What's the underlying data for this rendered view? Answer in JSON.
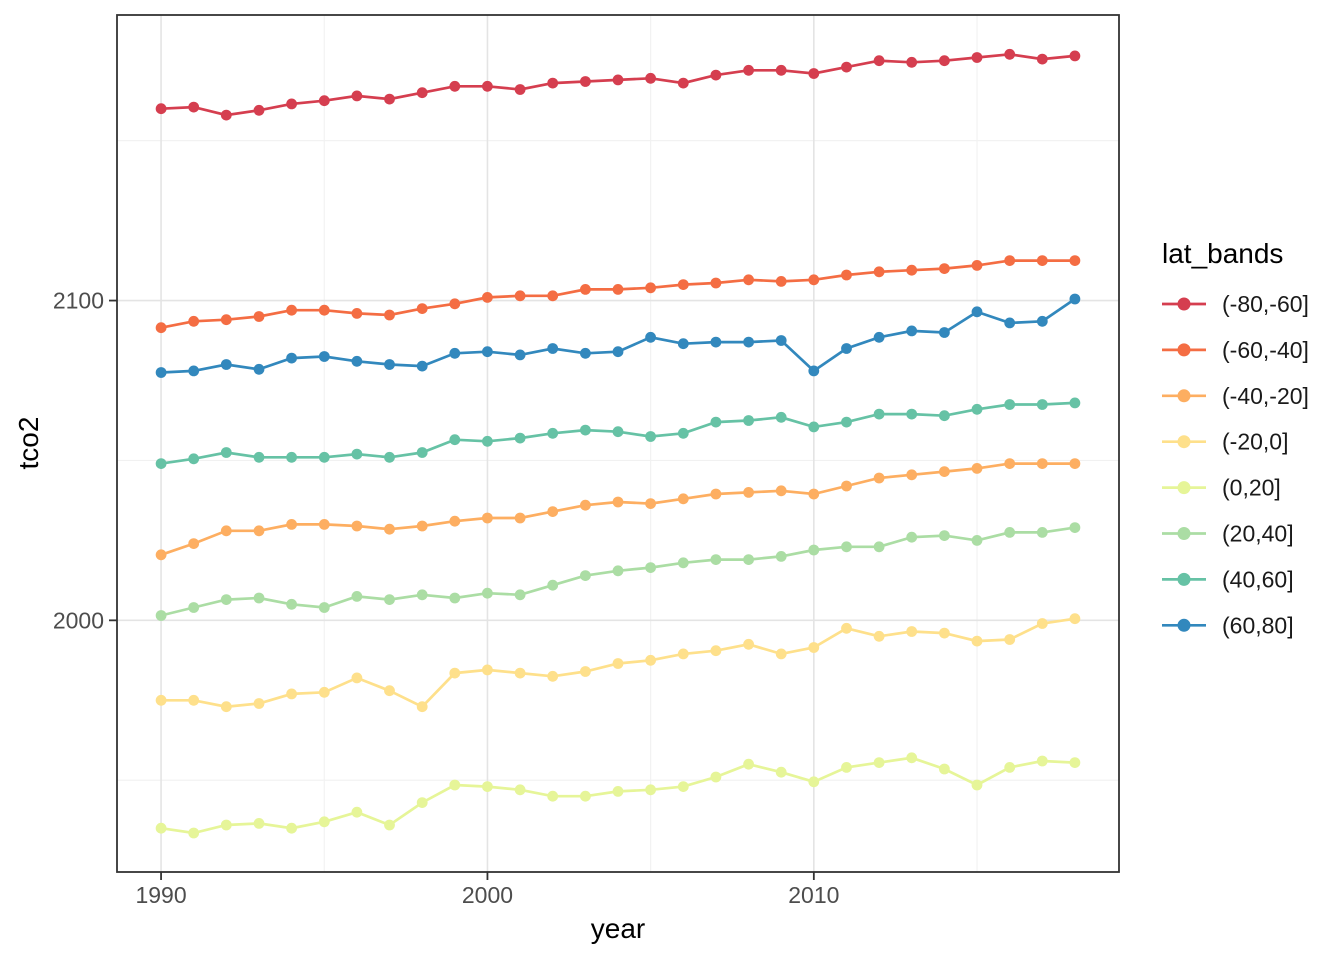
{
  "chart_data": {
    "type": "line",
    "title": "",
    "xlabel": "year",
    "ylabel": "tco2",
    "legend": {
      "title": "lat_bands",
      "position": "right"
    },
    "x": [
      1990,
      1991,
      1992,
      1993,
      1994,
      1995,
      1996,
      1997,
      1998,
      1999,
      2000,
      2001,
      2002,
      2003,
      2004,
      2005,
      2006,
      2007,
      2008,
      2009,
      2010,
      2011,
      2012,
      2013,
      2014,
      2015,
      2016,
      2017,
      2018
    ],
    "series": [
      {
        "name": "(-80,-60]",
        "color": "#D53E4F",
        "values": [
          2160,
          2160.5,
          2158,
          2159.5,
          2161.5,
          2162.5,
          2164,
          2163,
          2165,
          2167,
          2167,
          2166,
          2168,
          2168.5,
          2169,
          2169.5,
          2168,
          2170.5,
          2172,
          2172,
          2171,
          2173,
          2175,
          2174.5,
          2175,
          2176,
          2177,
          2175.5,
          2176.5
        ]
      },
      {
        "name": "(-60,-40]",
        "color": "#F46D43",
        "values": [
          2091.5,
          2093.5,
          2094,
          2095,
          2097,
          2097,
          2096,
          2095.5,
          2097.5,
          2099,
          2101,
          2101.5,
          2101.5,
          2103.5,
          2103.5,
          2104,
          2105,
          2105.5,
          2106.5,
          2106,
          2106.5,
          2108,
          2109,
          2109.5,
          2110,
          2111,
          2112.5,
          2112.5,
          2112.5
        ]
      },
      {
        "name": "(-40,-20]",
        "color": "#FDAE61",
        "values": [
          2020.5,
          2024,
          2028,
          2028,
          2030,
          2030,
          2029.5,
          2028.5,
          2029.5,
          2031,
          2032,
          2032,
          2034,
          2036,
          2037,
          2036.5,
          2038,
          2039.5,
          2040,
          2040.5,
          2039.5,
          2042,
          2044.5,
          2045.5,
          2046.5,
          2047.5,
          2049,
          2049,
          2049
        ]
      },
      {
        "name": "(-20,0]",
        "color": "#FEE08B",
        "values": [
          1975,
          1975,
          1973,
          1974,
          1977,
          1977.5,
          1982,
          1978,
          1973,
          1983.5,
          1984.5,
          1983.5,
          1982.5,
          1984,
          1986.5,
          1987.5,
          1989.5,
          1990.5,
          1992.5,
          1989.5,
          1991.5,
          1997.5,
          1995,
          1996.5,
          1996,
          1993.5,
          1994,
          1999,
          2000.5
        ]
      },
      {
        "name": "(0,20]",
        "color": "#E6F598",
        "values": [
          1935,
          1933.5,
          1936,
          1936.5,
          1935,
          1937,
          1940,
          1936,
          1943,
          1948.5,
          1948,
          1947,
          1945,
          1945,
          1946.5,
          1947,
          1948,
          1951,
          1955,
          1952.5,
          1949.5,
          1954,
          1955.5,
          1957,
          1953.5,
          1948.5,
          1954,
          1956,
          1955.5
        ]
      },
      {
        "name": "(20,40]",
        "color": "#ABDDA4",
        "values": [
          2001.5,
          2004,
          2006.5,
          2007,
          2005,
          2004,
          2007.5,
          2006.5,
          2008,
          2007,
          2008.5,
          2008,
          2011,
          2014,
          2015.5,
          2016.5,
          2018,
          2019,
          2019,
          2020,
          2022,
          2023,
          2023,
          2026,
          2026.5,
          2025,
          2027.5,
          2027.5,
          2029
        ]
      },
      {
        "name": "(40,60]",
        "color": "#66C2A5",
        "values": [
          2049,
          2050.5,
          2052.5,
          2051,
          2051,
          2051,
          2052,
          2051,
          2052.5,
          2056.5,
          2056,
          2057,
          2058.5,
          2059.5,
          2059,
          2057.5,
          2058.5,
          2062,
          2062.5,
          2063.5,
          2060.5,
          2062,
          2064.5,
          2064.5,
          2064,
          2066,
          2067.5,
          2067.5,
          2068
        ]
      },
      {
        "name": "(60,80]",
        "color": "#3288BD",
        "values": [
          2077.5,
          2078,
          2080,
          2078.5,
          2082,
          2082.5,
          2081,
          2080,
          2079.5,
          2083.5,
          2084,
          2083,
          2085,
          2083.5,
          2084,
          2088.5,
          2086.5,
          2087,
          2087,
          2087.5,
          2078,
          2085,
          2088.5,
          2090.5,
          2090,
          2096.5,
          2093,
          2093.5,
          2100.5
        ]
      }
    ],
    "x_axis": {
      "tick_labels": [
        "1990",
        "2000",
        "2010"
      ],
      "tick_values": [
        1990,
        2000,
        2010
      ],
      "minor_values": [
        1995,
        2005,
        2015
      ],
      "range": [
        1988.65,
        2019.35
      ]
    },
    "y_axis": {
      "tick_labels": [
        "2000",
        "2100"
      ],
      "tick_values": [
        2000,
        2100
      ],
      "minor_values": [
        1950,
        2050,
        2150
      ],
      "range": [
        1921.3,
        2189.3
      ]
    },
    "grid": true
  },
  "style": {
    "background": "#FFFFFF",
    "panel_background": "#FFFFFF",
    "panel_border": "#333333",
    "grid_major": "#E4E4E4",
    "grid_minor": "#F1F1F1",
    "tick_color": "#333333",
    "tick_label_color": "#4D4D4D",
    "title_color": "#000000"
  }
}
